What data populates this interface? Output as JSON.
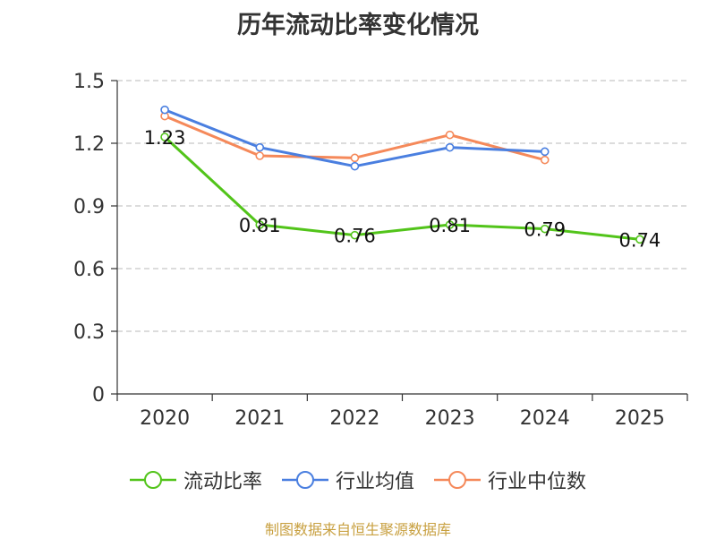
{
  "title": "历年流动比率变化情况",
  "source": "制图数据来自恒生聚源数据库",
  "chart_data": {
    "type": "line",
    "title": "历年流动比率变化情况",
    "categories": [
      "2020",
      "2021",
      "2022",
      "2023",
      "2024",
      "2025"
    ],
    "ylim": [
      0,
      1.5
    ],
    "yticks": [
      "0",
      "0.3",
      "0.6",
      "0.9",
      "1.2",
      "1.5"
    ],
    "ytick_values": [
      0,
      0.3,
      0.6,
      0.9,
      1.2,
      1.5
    ],
    "grid": true,
    "legend_position": "bottom",
    "series": [
      {
        "name": "流动比率",
        "color": "#52c41a",
        "values": [
          1.23,
          0.81,
          0.76,
          0.81,
          0.79,
          0.74
        ],
        "labels": [
          "1.23",
          "0.81",
          "0.76",
          "0.81",
          "0.79",
          "0.74"
        ]
      },
      {
        "name": "行业均值",
        "color": "#4a7fe0",
        "values": [
          1.36,
          1.18,
          1.09,
          1.18,
          1.16,
          null
        ]
      },
      {
        "name": "行业中位数",
        "color": "#f5895a",
        "values": [
          1.33,
          1.14,
          1.13,
          1.24,
          1.12,
          null
        ]
      }
    ]
  }
}
